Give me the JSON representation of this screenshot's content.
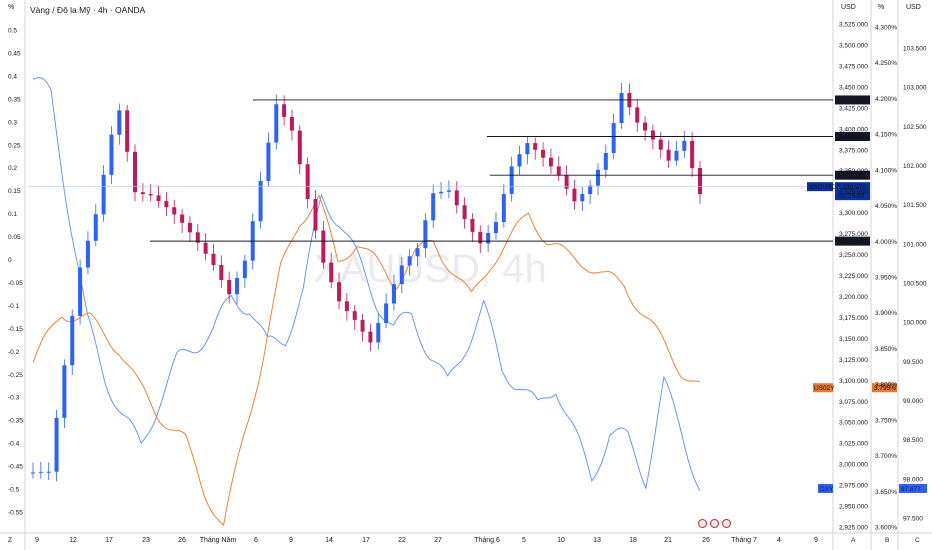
{
  "header": {
    "title": "Vàng / Đô la Mỹ · 4h · OANDA",
    "left_axis_unit": "%",
    "price_axis_unit": "USD",
    "pct_axis_unit": "%",
    "dxy_axis_unit": "USD",
    "watermark": "XAUUSD, 4h"
  },
  "colors": {
    "candle_up": "#2962ff",
    "candle_down": "#c2185b",
    "dxy_line": "#5b8def",
    "us02y_line": "#e8782a",
    "level_line": "#131722",
    "price_tag_bg": "#0c3299"
  },
  "chart_data": {
    "type": "line",
    "title": "Vàng / Đô la Mỹ · 4h · OANDA",
    "x_tick_labels": [
      "9",
      "12",
      "17",
      "23",
      "26",
      "Tháng Năm",
      "6",
      "9",
      "14",
      "17",
      "22",
      "27",
      "Tháng 6",
      "5",
      "10",
      "13",
      "18",
      "21",
      "26",
      "Tháng 7",
      "4",
      "9"
    ],
    "bottom_corner_labels": [
      "Z",
      "A",
      "B",
      "C"
    ],
    "left_axis": {
      "unit": "%",
      "range": [
        -0.55,
        0.5
      ],
      "ticks": [
        "0.5",
        "0.45",
        "0.4",
        "0.35",
        "0.3",
        "0.25",
        "0.2",
        "0.15",
        "0.1",
        "0.05",
        "0",
        "-0.05",
        "-0.1",
        "-0.15",
        "-0.2",
        "-0.25",
        "-0.3",
        "-0.35",
        "-0.4",
        "-0.45",
        "-0.5",
        "-0.55"
      ]
    },
    "price_axis": {
      "unit": "USD",
      "range": [
        2925,
        3525
      ],
      "ticks": [
        "3,525.000",
        "3,500.000",
        "3,475.000",
        "3,450.000",
        "3,425.000",
        "3,400.000",
        "3,375.000",
        "3,350.000",
        "3,325.000",
        "3,300.000",
        "3,275.000",
        "3,250.000",
        "3,225.000",
        "3,200.000",
        "3,175.000",
        "3,150.000",
        "3,125.000",
        "3,100.000",
        "3,075.000",
        "3,050.000",
        "3,025.000",
        "3,000.000",
        "2,975.000",
        "2,950.000",
        "2,925.000"
      ]
    },
    "pct_axis": {
      "unit": "%",
      "range": [
        3.6,
        4.3
      ],
      "ticks": [
        "4.300%",
        "4.250%",
        "4.200%",
        "4.150%",
        "4.100%",
        "4.050%",
        "4.000%",
        "3.950%",
        "3.900%",
        "3.850%",
        "3.800%",
        "3.750%",
        "3.700%",
        "3.650%",
        "3.600%"
      ]
    },
    "dxy_axis": {
      "unit": "USD",
      "range": [
        97.5,
        103.5
      ],
      "ticks": [
        "103.500",
        "103.000",
        "102.500",
        "102.000",
        "101.500",
        "101.000",
        "100.500",
        "100.000",
        "99.500",
        "99.000",
        "98.500",
        "98.000",
        "97.500"
      ]
    },
    "horizontal_levels": [
      {
        "label": "3,434.396",
        "value": 3434.396
      },
      {
        "label": "3,390.806",
        "value": 3390.806
      },
      {
        "label": "3,344.633",
        "value": 3344.633
      },
      {
        "label": "3,266.000",
        "value": 3266.0
      }
    ],
    "last_price": {
      "symbol": "XAUUSD",
      "value_label": "3,330.970",
      "countdown": "02:29:32",
      "value": 3330.97
    },
    "series": [
      {
        "name": "XAUUSD",
        "axis": "price",
        "x": [
          "9",
          "12",
          "17",
          "23",
          "26",
          "Tháng Năm",
          "6",
          "9",
          "14",
          "17",
          "22",
          "27",
          "Tháng 6",
          "5",
          "10",
          "13",
          "18",
          "21",
          "26"
        ],
        "points": [
          [
            0,
            2990
          ],
          [
            2,
            2985
          ],
          [
            4,
            3110
          ],
          [
            6,
            3230
          ],
          [
            8,
            3300
          ],
          [
            10,
            3400
          ],
          [
            11,
            3430
          ],
          [
            13,
            3330
          ],
          [
            15,
            3320
          ],
          [
            17,
            3300
          ],
          [
            19,
            3280
          ],
          [
            21,
            3260
          ],
          [
            23,
            3240
          ],
          [
            25,
            3210
          ],
          [
            27,
            3250
          ],
          [
            29,
            3340
          ],
          [
            31,
            3425
          ],
          [
            33,
            3390
          ],
          [
            35,
            3310
          ],
          [
            37,
            3240
          ],
          [
            39,
            3200
          ],
          [
            41,
            3180
          ],
          [
            43,
            3150
          ],
          [
            45,
            3190
          ],
          [
            47,
            3230
          ],
          [
            49,
            3250
          ],
          [
            51,
            3320
          ],
          [
            53,
            3330
          ],
          [
            55,
            3300
          ],
          [
            57,
            3270
          ],
          [
            59,
            3290
          ],
          [
            61,
            3350
          ],
          [
            63,
            3375
          ],
          [
            65,
            3360
          ],
          [
            67,
            3345
          ],
          [
            69,
            3320
          ],
          [
            71,
            3340
          ],
          [
            73,
            3375
          ],
          [
            75,
            3440
          ],
          [
            77,
            3400
          ],
          [
            79,
            3380
          ],
          [
            81,
            3360
          ],
          [
            83,
            3390
          ],
          [
            85,
            3330
          ]
        ]
      },
      {
        "name": "US02Y",
        "axis": "pct",
        "value_label": "3.795%",
        "points": [
          [
            0,
            3.83
          ],
          [
            3,
            3.9
          ],
          [
            6,
            3.89
          ],
          [
            9,
            3.85
          ],
          [
            11,
            3.8
          ],
          [
            13,
            3.76
          ],
          [
            16,
            3.72
          ],
          [
            18,
            3.65
          ],
          [
            20,
            3.6
          ],
          [
            22,
            3.72
          ],
          [
            24,
            3.83
          ],
          [
            26,
            3.96
          ],
          [
            28,
            4.03
          ],
          [
            30,
            4.06
          ],
          [
            32,
            3.97
          ],
          [
            34,
            4.0
          ],
          [
            36,
            3.97
          ],
          [
            38,
            3.94
          ],
          [
            40,
            3.98
          ],
          [
            42,
            4.0
          ],
          [
            44,
            3.96
          ],
          [
            46,
            3.92
          ],
          [
            48,
            3.97
          ],
          [
            50,
            4.0
          ],
          [
            52,
            4.04
          ],
          [
            54,
            4.0
          ],
          [
            56,
            3.98
          ],
          [
            58,
            3.97
          ],
          [
            60,
            3.95
          ],
          [
            62,
            3.94
          ],
          [
            64,
            3.9
          ],
          [
            66,
            3.86
          ],
          [
            68,
            3.82
          ],
          [
            70,
            3.795
          ]
        ]
      },
      {
        "name": "DXY",
        "axis": "dxy",
        "value_label": "97.877",
        "points": [
          [
            0,
            103.1
          ],
          [
            2,
            102.9
          ],
          [
            4,
            101.4
          ],
          [
            6,
            100.0
          ],
          [
            8,
            99.3
          ],
          [
            10,
            98.8
          ],
          [
            12,
            98.4
          ],
          [
            14,
            99.0
          ],
          [
            16,
            99.5
          ],
          [
            18,
            99.7
          ],
          [
            20,
            99.9
          ],
          [
            22,
            100.3
          ],
          [
            24,
            100.2
          ],
          [
            26,
            99.7
          ],
          [
            28,
            99.8
          ],
          [
            30,
            100.4
          ],
          [
            32,
            101.6
          ],
          [
            34,
            101.3
          ],
          [
            36,
            100.8
          ],
          [
            38,
            100.3
          ],
          [
            40,
            99.9
          ],
          [
            42,
            100.1
          ],
          [
            44,
            99.6
          ],
          [
            46,
            99.2
          ],
          [
            48,
            99.7
          ],
          [
            50,
            100.2
          ],
          [
            52,
            99.4
          ],
          [
            54,
            99.2
          ],
          [
            56,
            98.9
          ],
          [
            58,
            99.2
          ],
          [
            60,
            98.6
          ],
          [
            62,
            98.0
          ],
          [
            64,
            98.6
          ],
          [
            66,
            98.5
          ],
          [
            68,
            98.0
          ],
          [
            70,
            99.2
          ],
          [
            72,
            98.6
          ],
          [
            74,
            97.877
          ]
        ]
      }
    ]
  }
}
